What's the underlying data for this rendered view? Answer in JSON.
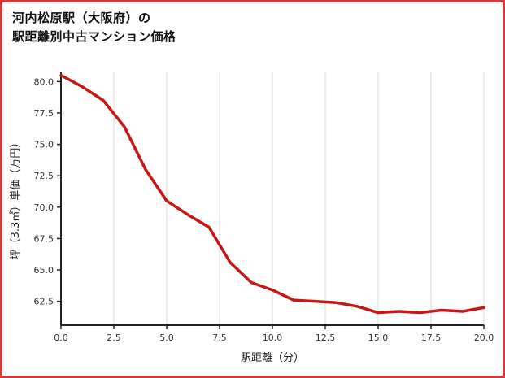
{
  "chart": {
    "title_line1": "河内松原駅（大阪府）の",
    "title_line2": "駅距離別中古マンション価格"
  },
  "chart_data": {
    "type": "line",
    "title": "河内松原駅（大阪府）の 駅距離別中古マンション価格",
    "xlabel": "駅距離（分）",
    "ylabel": "坪（3.3㎡）単価（万円）",
    "x": [
      0,
      1,
      2,
      3,
      4,
      5,
      6,
      7,
      8,
      9,
      10,
      11,
      12,
      13,
      14,
      15,
      16,
      17,
      18,
      19,
      20
    ],
    "y": [
      80.5,
      79.6,
      78.5,
      76.4,
      73.0,
      70.5,
      69.4,
      68.4,
      65.6,
      64.0,
      63.4,
      62.6,
      62.5,
      62.4,
      62.1,
      61.6,
      61.7,
      61.6,
      61.8,
      61.7,
      62.0
    ],
    "xlim": [
      0,
      20
    ],
    "ylim": [
      60.6,
      80.8
    ],
    "xticks": [
      0,
      2.5,
      5,
      7.5,
      10,
      12.5,
      15,
      17.5,
      20
    ],
    "yticks": [
      62.5,
      65,
      67.5,
      70,
      72.5,
      75,
      77.5,
      80
    ],
    "grid": "vertical",
    "legend": "none",
    "line_color": "#c71616",
    "grid_color": "#d9d9d9",
    "axis_color": "#222222",
    "border_color": "#cc3b3b"
  }
}
